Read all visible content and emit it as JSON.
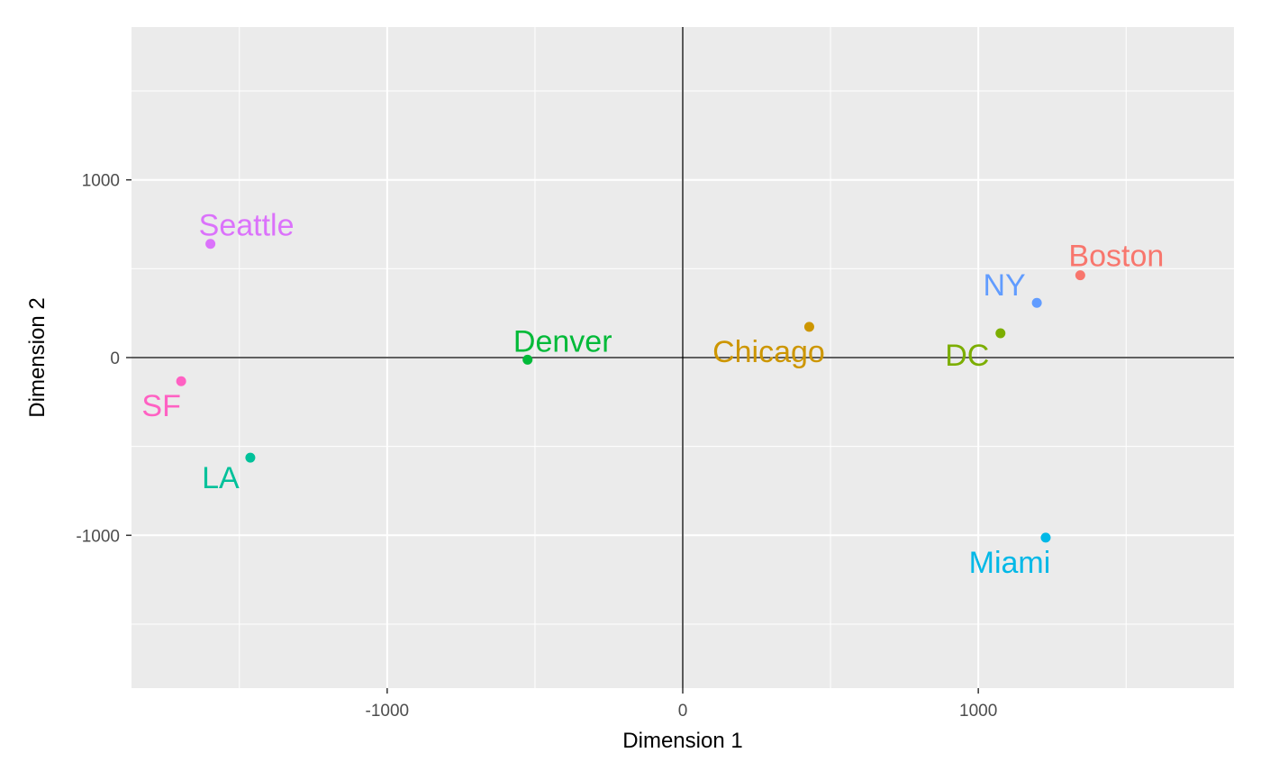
{
  "chart_data": {
    "type": "scatter",
    "title": "",
    "xlabel": "Dimension 1",
    "ylabel": "Dimension 2",
    "xlim": [
      -1865,
      1865
    ],
    "ylim": [
      -1860,
      1860
    ],
    "x_ticks": [
      -1000,
      0,
      1000
    ],
    "y_ticks": [
      1000,
      0,
      -1000
    ],
    "x_tick_labels": [
      "-1000",
      "0",
      "1000"
    ],
    "y_tick_labels": [
      "1000",
      "0",
      "-1000"
    ],
    "grid": true,
    "reference_lines": {
      "x": 0,
      "y": 0
    },
    "points": [
      {
        "label": "Boston",
        "x": 1345,
        "y": 463,
        "color": "#F8766D"
      },
      {
        "label": "NY",
        "x": 1198,
        "y": 308,
        "color": "#619CFF"
      },
      {
        "label": "DC",
        "x": 1075,
        "y": 137,
        "color": "#7CAE00"
      },
      {
        "label": "Miami",
        "x": 1228,
        "y": -1013,
        "color": "#00B8E7"
      },
      {
        "label": "Chicago",
        "x": 428,
        "y": 173,
        "color": "#CD9600"
      },
      {
        "label": "Seattle",
        "x": -1598,
        "y": 640,
        "color": "#DB72FB"
      },
      {
        "label": "SF",
        "x": -1697,
        "y": -133,
        "color": "#FF61C3"
      },
      {
        "label": "LA",
        "x": -1463,
        "y": -563,
        "color": "#00C19A"
      },
      {
        "label": "Denver",
        "x": -525,
        "y": -12,
        "color": "#00BA38"
      }
    ]
  }
}
